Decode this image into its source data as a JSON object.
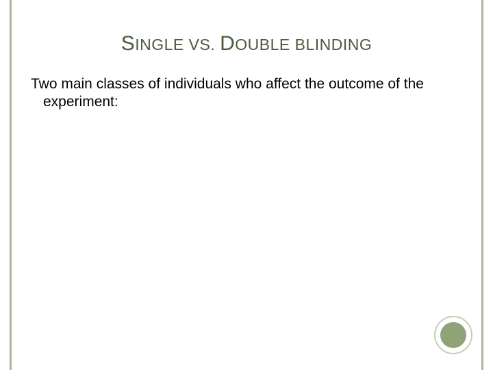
{
  "slide": {
    "title_parts": {
      "w1_cap": "S",
      "w1_rest": "INGLE",
      "vs_cap": "VS",
      "dot": ". ",
      "w2_cap": "D",
      "w2_rest": "OUBLE",
      "sp": " ",
      "w3_rest": "BLINDING"
    },
    "title_color": "#4a5a3a",
    "body": "Two main classes of individuals who affect the outcome of the experiment:",
    "body_color": "#000000",
    "border_color": "#a9b79a",
    "background_color": "#ffffff",
    "decoration": {
      "inner_fill": "#8fa377",
      "outer_stroke": "#c3ceb5"
    },
    "title_fontsize_cap": 30,
    "title_fontsize_rest": 23,
    "body_fontsize": 21
  }
}
